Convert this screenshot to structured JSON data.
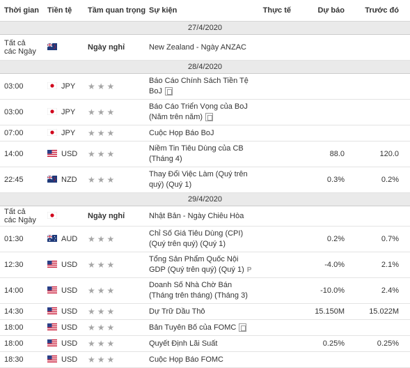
{
  "header": {
    "time": "Thời gian",
    "currency": "Tiền tệ",
    "importance": "Tầm quan trọng",
    "event": "Sự kiện",
    "actual": "Thực tế",
    "forecast": "Dự báo",
    "previous": "Trước đó"
  },
  "groups": [
    {
      "date": "27/4/2020",
      "rows": [
        {
          "time": "Tất cả các Ngày",
          "flag": "nz",
          "currency": "",
          "holiday": "Ngày nghỉ",
          "event": "New Zealand - Ngày ANZAC",
          "actual": "",
          "forecast": "",
          "previous": ""
        }
      ]
    },
    {
      "date": "28/4/2020",
      "rows": [
        {
          "time": "03:00",
          "flag": "jp",
          "currency": "JPY",
          "stars": 3,
          "event": "Báo Cáo Chính Sách Tiền Tệ BoJ",
          "icon": "doc-icon",
          "actual": "",
          "forecast": "",
          "previous": ""
        },
        {
          "time": "03:00",
          "flag": "jp",
          "currency": "JPY",
          "stars": 3,
          "event": "Báo Cáo Triển Vọng của BoJ (Năm trên năm)",
          "icon": "doc-icon",
          "actual": "",
          "forecast": "",
          "previous": ""
        },
        {
          "time": "07:00",
          "flag": "jp",
          "currency": "JPY",
          "stars": 3,
          "event": "Cuộc Họp Báo BoJ",
          "actual": "",
          "forecast": "",
          "previous": ""
        },
        {
          "time": "14:00",
          "flag": "us",
          "currency": "USD",
          "stars": 3,
          "event": "Niềm Tin Tiêu Dùng của CB (Tháng 4)",
          "actual": "",
          "forecast": "88.0",
          "previous": "120.0"
        },
        {
          "time": "22:45",
          "flag": "nz",
          "currency": "NZD",
          "stars": 3,
          "event": "Thay Đổi Việc Làm (Quý trên quý) (Quý 1)",
          "actual": "",
          "forecast": "0.3%",
          "previous": "0.2%"
        }
      ]
    },
    {
      "date": "29/4/2020",
      "rows": [
        {
          "time": "Tất cả các Ngày",
          "flag": "jp",
          "currency": "",
          "holiday": "Ngày nghỉ",
          "event": "Nhật Bản - Ngày Chiêu Hòa",
          "actual": "",
          "forecast": "",
          "previous": ""
        },
        {
          "time": "01:30",
          "flag": "au",
          "currency": "AUD",
          "stars": 3,
          "event": "Chỉ Số Giá Tiêu Dùng (CPI) (Quý trên quý) (Quý 1)",
          "actual": "",
          "forecast": "0.2%",
          "previous": "0.7%"
        },
        {
          "time": "12:30",
          "flag": "us",
          "currency": "USD",
          "stars": 3,
          "event": "Tổng Sản Phẩm Quốc Nội GDP (Quý trên quý) (Quý 1)",
          "prelim": "P",
          "actual": "",
          "forecast": "-4.0%",
          "previous": "2.1%"
        },
        {
          "time": "14:00",
          "flag": "us",
          "currency": "USD",
          "stars": 3,
          "event": "Doanh Số Nhà Chờ Bán (Tháng trên tháng) (Tháng 3)",
          "actual": "",
          "forecast": "-10.0%",
          "previous": "2.4%"
        },
        {
          "time": "14:30",
          "flag": "us",
          "currency": "USD",
          "stars": 3,
          "event": "Dự Trữ Dầu Thô",
          "actual": "",
          "forecast": "15.150M",
          "previous": "15.022M"
        },
        {
          "time": "18:00",
          "flag": "us",
          "currency": "USD",
          "stars": 3,
          "event": "Bản Tuyên Bố của FOMC",
          "icon": "doc-icon",
          "actual": "",
          "forecast": "",
          "previous": ""
        },
        {
          "time": "18:00",
          "flag": "us",
          "currency": "USD",
          "stars": 3,
          "event": "Quyết Định Lãi Suất",
          "actual": "",
          "forecast": "0.25%",
          "previous": "0.25%"
        },
        {
          "time": "18:30",
          "flag": "us",
          "currency": "USD",
          "stars": 3,
          "event": "Cuộc Họp Báo FOMC",
          "actual": "",
          "forecast": "",
          "previous": ""
        }
      ]
    }
  ]
}
